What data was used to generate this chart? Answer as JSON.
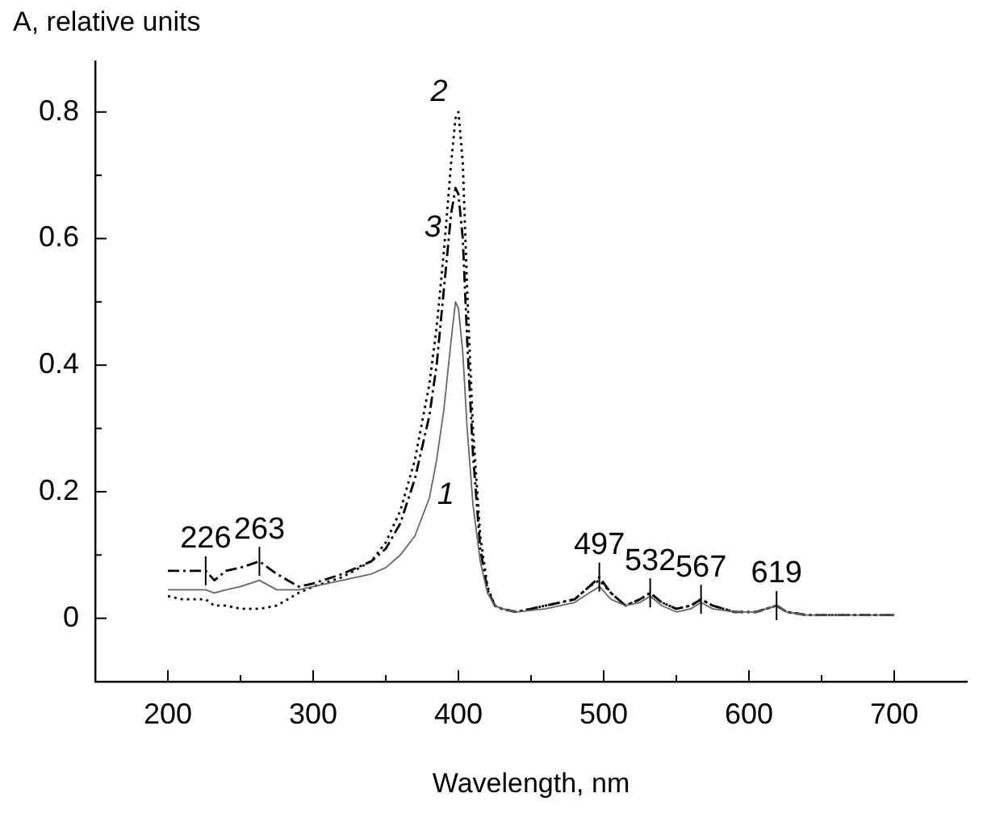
{
  "chart_data": {
    "type": "line",
    "ylabel": "A, relative units",
    "xlabel": "Wavelength, nm",
    "x": [
      200,
      210,
      220,
      226,
      232,
      240,
      250,
      263,
      275,
      290,
      300,
      320,
      340,
      350,
      360,
      370,
      380,
      385,
      390,
      395,
      398,
      400,
      403,
      406,
      410,
      415,
      420,
      425,
      430,
      440,
      460,
      480,
      490,
      497,
      505,
      515,
      525,
      532,
      540,
      550,
      560,
      567,
      575,
      590,
      605,
      612,
      619,
      626,
      640,
      670,
      700
    ],
    "series": [
      {
        "name": "1",
        "color": "#666666",
        "line_style": "solid",
        "values": [
          0.045,
          0.045,
          0.045,
          0.045,
          0.04,
          0.045,
          0.05,
          0.06,
          0.045,
          0.045,
          0.05,
          0.06,
          0.07,
          0.08,
          0.1,
          0.13,
          0.19,
          0.25,
          0.33,
          0.44,
          0.5,
          0.49,
          0.42,
          0.3,
          0.18,
          0.09,
          0.04,
          0.02,
          0.015,
          0.01,
          0.015,
          0.025,
          0.04,
          0.05,
          0.03,
          0.02,
          0.025,
          0.035,
          0.02,
          0.01,
          0.015,
          0.025,
          0.015,
          0.01,
          0.01,
          0.015,
          0.02,
          0.01,
          0.005,
          0.005,
          0.005
        ]
      },
      {
        "name": "2",
        "color": "#000000",
        "line_style": "dotted",
        "values": [
          0.035,
          0.03,
          0.03,
          0.03,
          0.02,
          0.02,
          0.015,
          0.015,
          0.02,
          0.04,
          0.05,
          0.065,
          0.09,
          0.12,
          0.17,
          0.25,
          0.37,
          0.46,
          0.58,
          0.72,
          0.79,
          0.8,
          0.72,
          0.52,
          0.3,
          0.13,
          0.05,
          0.02,
          0.015,
          0.01,
          0.02,
          0.03,
          0.05,
          0.06,
          0.04,
          0.02,
          0.03,
          0.04,
          0.025,
          0.015,
          0.02,
          0.03,
          0.02,
          0.01,
          0.01,
          0.015,
          0.02,
          0.01,
          0.005,
          0.005,
          0.005
        ]
      },
      {
        "name": "3",
        "color": "#000000",
        "line_style": "dashed",
        "values": [
          0.075,
          0.075,
          0.075,
          0.075,
          0.06,
          0.075,
          0.08,
          0.09,
          0.07,
          0.05,
          0.055,
          0.07,
          0.09,
          0.11,
          0.15,
          0.22,
          0.32,
          0.4,
          0.52,
          0.64,
          0.68,
          0.67,
          0.6,
          0.44,
          0.26,
          0.11,
          0.045,
          0.02,
          0.015,
          0.01,
          0.02,
          0.03,
          0.05,
          0.065,
          0.04,
          0.02,
          0.03,
          0.04,
          0.025,
          0.015,
          0.02,
          0.03,
          0.02,
          0.01,
          0.01,
          0.015,
          0.02,
          0.01,
          0.005,
          0.005,
          0.005
        ]
      }
    ],
    "annotations": [
      {
        "text": "226",
        "x": 226,
        "y": 0.075
      },
      {
        "text": "263",
        "x": 263,
        "y": 0.09
      },
      {
        "text": "497",
        "x": 497,
        "y": 0.065
      },
      {
        "text": "532",
        "x": 532,
        "y": 0.04
      },
      {
        "text": "567",
        "x": 567,
        "y": 0.03
      },
      {
        "text": "619",
        "x": 619,
        "y": 0.02
      }
    ],
    "xlim": [
      150,
      750
    ],
    "xticks": [
      200,
      {
        "value": 250,
        "label": null
      },
      300,
      {
        "value": 350,
        "label": null
      },
      400,
      {
        "value": 450,
        "label": null
      },
      500,
      {
        "value": 550,
        "label": null
      },
      600,
      {
        "value": 650,
        "label": null
      },
      700
    ],
    "ylim": [
      -0.1,
      0.88
    ],
    "yticks": [
      {
        "value": -0.1,
        "label": null
      },
      0,
      {
        "value": 0.1,
        "label": null
      },
      0.2,
      {
        "value": 0.3,
        "label": null
      },
      0.4,
      {
        "value": 0.5,
        "label": null
      },
      0.6,
      {
        "value": 0.7,
        "label": null
      },
      0.8
    ],
    "grid": false,
    "legend": false,
    "marker": "none"
  }
}
